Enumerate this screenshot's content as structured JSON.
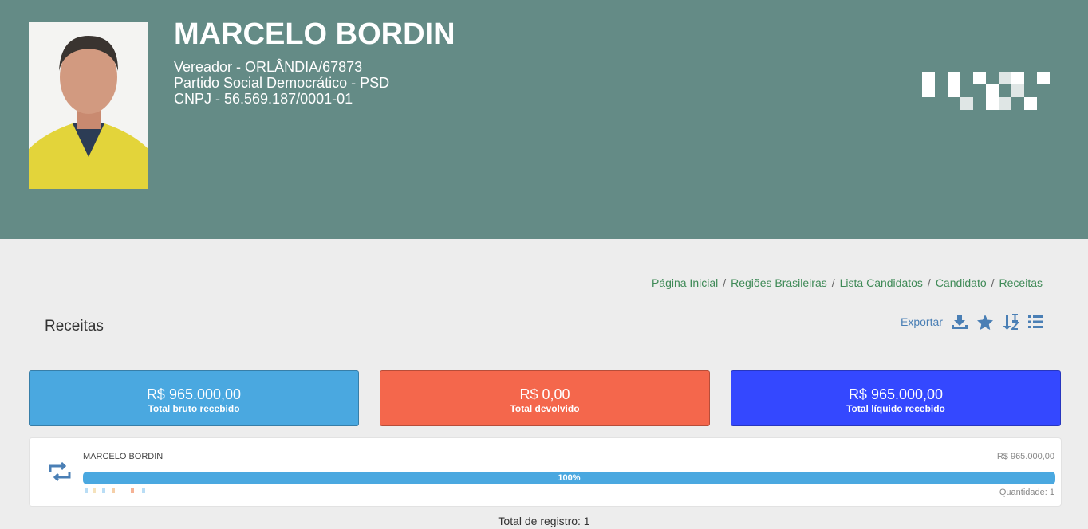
{
  "header": {
    "name": "MARCELO BORDIN",
    "lines": [
      "Vereador - ORLÂNDIA/67873",
      "Partido Social Democrático - PSD",
      "CNPJ - 56.569.187/0001-01"
    ]
  },
  "breadcrumb": {
    "items": [
      "Página Inicial",
      "Regiões Brasileiras",
      "Lista Candidatos",
      "Candidato",
      "Receitas"
    ],
    "separator": "/"
  },
  "section": {
    "title": "Receitas",
    "export": "Exportar"
  },
  "cards": [
    {
      "value": "R$ 965.000,00",
      "label": "Total bruto recebido"
    },
    {
      "value": "R$ 0,00",
      "label": "Total devolvido"
    },
    {
      "value": "R$ 965.000,00",
      "label": "Total líquido recebido"
    }
  ],
  "entry": {
    "name": "MARCELO BORDIN",
    "amount": "R$ 965.000,00",
    "progress": "100%",
    "quantity": "Quantidade: 1"
  },
  "footer": {
    "total": "Total de registro: 1"
  }
}
